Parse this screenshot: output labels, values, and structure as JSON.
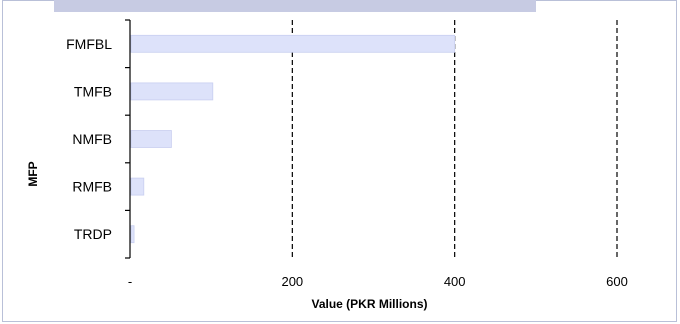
{
  "chart_data": {
    "type": "bar",
    "orientation": "horizontal",
    "title": "",
    "xlabel": "Value (PKR Millions)",
    "ylabel": "MFP",
    "categories": [
      "FMFBL",
      "TMFB",
      "NMFB",
      "RMFB",
      "TRDP"
    ],
    "values": [
      400,
      102,
      51,
      17,
      5
    ],
    "xlim": [
      0,
      600
    ],
    "x_ticks": [
      0,
      200,
      400,
      600
    ],
    "x_tick_labels": [
      "-",
      "200",
      "400",
      "600"
    ],
    "grid": "vertical dashed",
    "legend": "none",
    "colors": {
      "bar": "#dde2fa",
      "bar_edge": "#c9cff0",
      "grid": "#000000",
      "frame": "#b9c0d8",
      "banner": "#c7cbe3"
    }
  }
}
